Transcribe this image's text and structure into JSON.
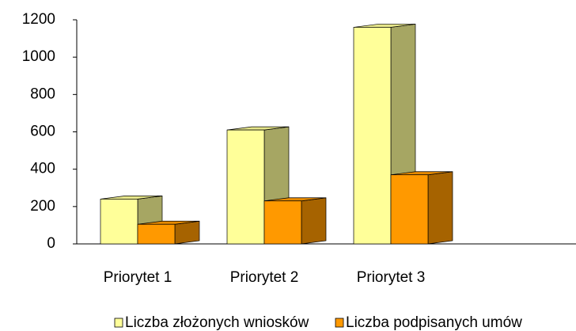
{
  "chart_data": {
    "type": "bar3d",
    "categories": [
      "Priorytet 1",
      "Priorytet 2",
      "Priorytet 3"
    ],
    "series": [
      {
        "name": "Liczba złożonych wniosków",
        "color": "#ffff99",
        "values": [
          240,
          610,
          1160
        ]
      },
      {
        "name": "Liczba podpisanych umów",
        "color": "#ff9900",
        "values": [
          105,
          230,
          370
        ]
      }
    ],
    "ylim": [
      0,
      1200
    ],
    "yticks": [
      0,
      200,
      400,
      600,
      800,
      1000,
      1200
    ],
    "grid": false
  }
}
